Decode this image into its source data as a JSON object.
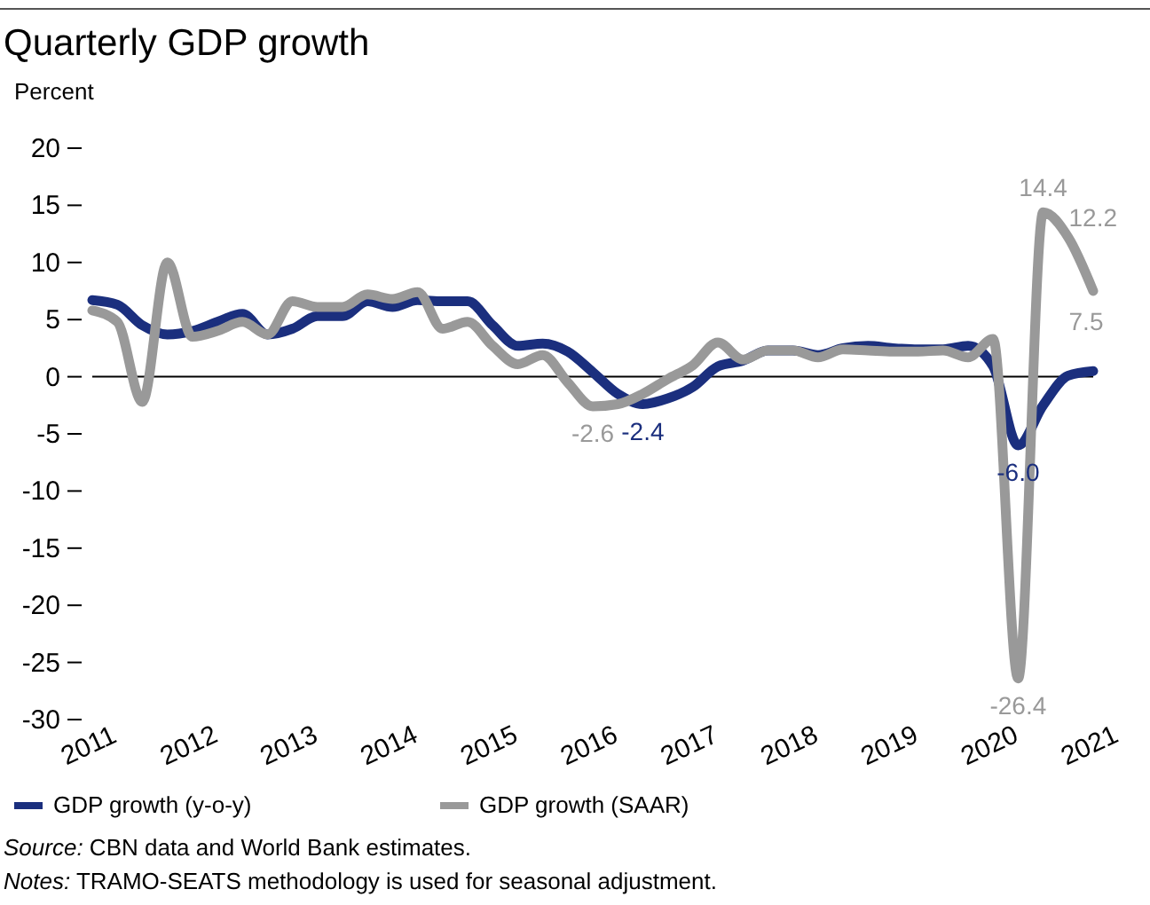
{
  "chart_data": {
    "type": "line",
    "title": "Quarterly GDP growth",
    "ylabel": "Percent",
    "x": [
      2011,
      2011.25,
      2011.5,
      2011.75,
      2012,
      2012.25,
      2012.5,
      2012.75,
      2013,
      2013.25,
      2013.5,
      2013.75,
      2014,
      2014.25,
      2014.5,
      2014.75,
      2015,
      2015.25,
      2015.5,
      2015.75,
      2016,
      2016.25,
      2016.5,
      2016.75,
      2017,
      2017.25,
      2017.5,
      2017.75,
      2018,
      2018.25,
      2018.5,
      2018.75,
      2019,
      2019.25,
      2019.5,
      2019.75,
      2020,
      2020.25,
      2020.5,
      2020.75,
      2021
    ],
    "xlim": [
      2011,
      2021
    ],
    "xticks": [
      2011,
      2012,
      2013,
      2014,
      2015,
      2016,
      2017,
      2018,
      2019,
      2020,
      2021
    ],
    "ylim": [
      -30,
      20
    ],
    "yticks": [
      -30,
      -25,
      -20,
      -15,
      -10,
      -5,
      0,
      5,
      10,
      15,
      20
    ],
    "series": [
      {
        "name": "GDP growth (y-o-y)",
        "color": "#1b2f7e",
        "values": [
          6.7,
          6.3,
          4.5,
          3.7,
          4.0,
          4.8,
          5.5,
          3.7,
          4.2,
          5.3,
          5.3,
          6.6,
          6.1,
          6.7,
          6.6,
          6.6,
          4.5,
          2.7,
          2.9,
          2.2,
          0.4,
          -1.5,
          -2.4,
          -1.9,
          -0.9,
          0.9,
          1.4,
          2.3,
          2.3,
          1.9,
          2.5,
          2.7,
          2.5,
          2.4,
          2.4,
          2.7,
          0.9,
          -6.0,
          -2.5,
          0.1,
          0.5
        ],
        "value_labels": [
          null,
          null,
          null,
          null,
          null,
          null,
          null,
          null,
          null,
          null,
          null,
          null,
          null,
          null,
          null,
          null,
          null,
          null,
          null,
          null,
          null,
          null,
          "-2.4",
          null,
          null,
          null,
          null,
          null,
          null,
          null,
          null,
          null,
          null,
          null,
          null,
          null,
          null,
          "-6.0",
          null,
          null,
          null
        ]
      },
      {
        "name": "GDP growth (SAAR)",
        "color": "#999999",
        "values": [
          5.8,
          4.8,
          -2.2,
          10.0,
          3.5,
          4.0,
          4.8,
          3.7,
          6.6,
          6.1,
          6.1,
          7.2,
          6.8,
          7.4,
          4.2,
          4.8,
          2.7,
          1.1,
          1.9,
          -0.5,
          -2.6,
          -2.4,
          -1.5,
          -0.2,
          1.0,
          3.0,
          1.5,
          2.3,
          2.3,
          1.7,
          2.4,
          2.3,
          2.2,
          2.2,
          2.3,
          1.7,
          3.3,
          -26.4,
          14.4,
          12.2,
          7.5
        ],
        "value_labels": [
          null,
          null,
          null,
          null,
          null,
          null,
          null,
          null,
          null,
          null,
          null,
          null,
          null,
          null,
          null,
          null,
          null,
          null,
          null,
          null,
          "-2.6",
          null,
          null,
          null,
          null,
          null,
          null,
          null,
          null,
          null,
          null,
          null,
          null,
          null,
          null,
          null,
          null,
          "-26.4",
          "14.4",
          "12.2",
          "7.5"
        ]
      }
    ],
    "ref_lines": [
      {
        "axis": "y",
        "value": 0,
        "color": "#000000"
      }
    ],
    "legend": "bottom",
    "grid": false,
    "marker": "none",
    "line_style": "solid",
    "annotations": [
      "Source: CBN data and World Bank estimates.",
      "Notes: TRAMO-SEATS methodology is used for seasonal adjustment."
    ]
  }
}
